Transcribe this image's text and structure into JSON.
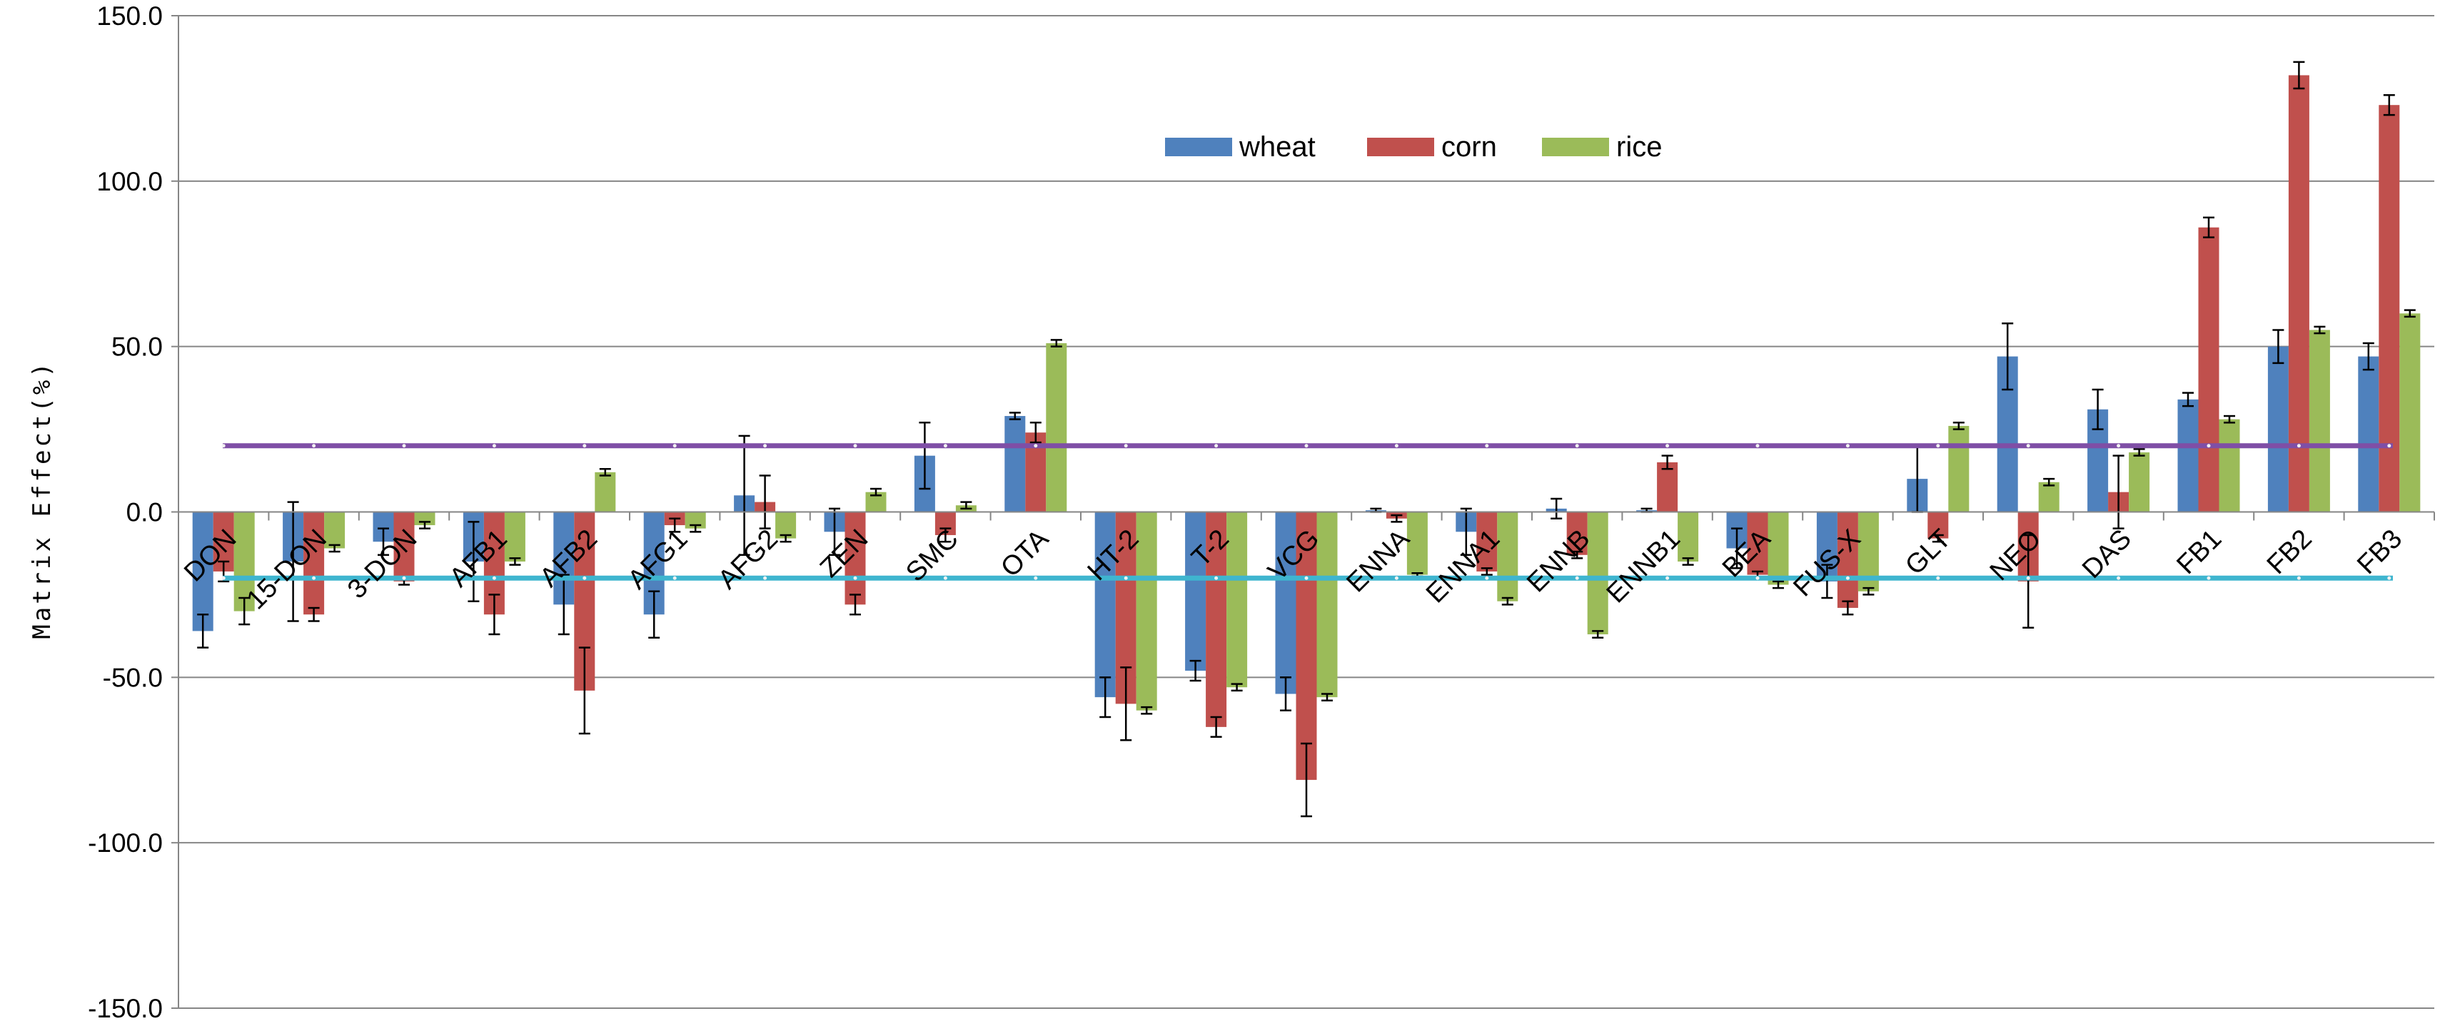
{
  "chart_data": {
    "type": "bar",
    "title": "",
    "xlabel": "",
    "ylabel": "Matrix Effect(%)",
    "ylim": [
      -150,
      150
    ],
    "yticks": [
      150,
      100,
      50,
      0,
      -50,
      -100,
      -150
    ],
    "ytick_labels": [
      "150.0",
      "100.0",
      "50.0",
      "0.0",
      "-50.0",
      "-100.0",
      "-150.0"
    ],
    "grid": true,
    "legend_position": "top-center",
    "categories": [
      "DON",
      "15-DON",
      "3-DON",
      "AFB1",
      "AFB2",
      "AFG1",
      "AFG2",
      "ZEN",
      "SMC",
      "OTA",
      "HT-2",
      "T-2",
      "VCG",
      "ENNA",
      "ENNA1",
      "ENNB",
      "ENNB1",
      "BEA",
      "FUS-X",
      "GLT",
      "NEO",
      "DAS",
      "FB1",
      "FB2",
      "FB3"
    ],
    "series": [
      {
        "name": "wheat",
        "color": "#4F81BD",
        "values": [
          -36,
          -15,
          -9,
          -15,
          -28,
          -31,
          5,
          -6,
          17,
          29,
          -56,
          -48,
          -55,
          0.5,
          -6,
          1,
          0.5,
          -11,
          -21,
          10,
          47,
          31,
          34,
          50,
          47
        ],
        "errors": [
          5,
          18,
          4,
          12,
          9,
          7,
          18,
          7,
          10,
          1,
          6,
          3,
          5,
          0.5,
          7,
          3,
          0.5,
          6,
          5,
          10,
          10,
          6,
          2,
          5,
          4
        ]
      },
      {
        "name": "corn",
        "color": "#C0504D",
        "values": [
          -18,
          -31,
          -21,
          -31,
          -54,
          -4,
          3,
          -28,
          -7,
          24,
          -58,
          -65,
          -81,
          -2,
          -18,
          -13,
          15,
          -19,
          -29,
          -8,
          -21,
          6,
          86,
          132,
          123
        ],
        "errors": [
          3,
          2,
          1,
          6,
          13,
          2,
          8,
          3,
          2,
          3,
          11,
          3,
          11,
          1,
          1,
          1,
          2,
          1,
          2,
          1,
          14,
          11,
          3,
          4,
          3
        ]
      },
      {
        "name": "rice",
        "color": "#9BBB59",
        "values": [
          -30,
          -11,
          -4,
          -15,
          12,
          -5,
          -8,
          6,
          2,
          51,
          -60,
          -53,
          -56,
          -19,
          -27,
          -37,
          -15,
          -22,
          -24,
          26,
          9,
          18,
          28,
          55,
          60
        ],
        "errors": [
          4,
          1,
          1,
          1,
          1,
          1,
          1,
          1,
          1,
          1,
          1,
          1,
          1,
          0.5,
          1,
          1,
          1,
          1,
          1,
          1,
          1,
          1,
          1,
          1,
          1
        ]
      }
    ],
    "reference_lines": [
      {
        "value": 20,
        "color": "#7F4FA6"
      },
      {
        "value": -20,
        "color": "#3FB5CF"
      }
    ]
  }
}
